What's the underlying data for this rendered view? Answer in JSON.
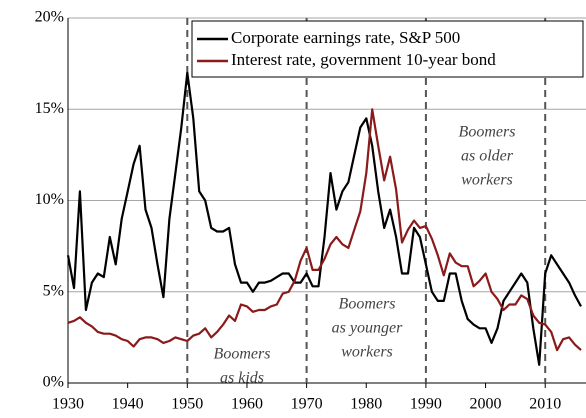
{
  "chart_data": {
    "type": "line",
    "x": [
      1930,
      1931,
      1932,
      1933,
      1934,
      1935,
      1936,
      1937,
      1938,
      1939,
      1940,
      1941,
      1942,
      1943,
      1944,
      1945,
      1946,
      1947,
      1948,
      1949,
      1950,
      1951,
      1952,
      1953,
      1954,
      1955,
      1956,
      1957,
      1958,
      1959,
      1960,
      1961,
      1962,
      1963,
      1964,
      1965,
      1966,
      1967,
      1968,
      1969,
      1970,
      1971,
      1972,
      1973,
      1974,
      1975,
      1976,
      1977,
      1978,
      1979,
      1980,
      1981,
      1982,
      1983,
      1984,
      1985,
      1986,
      1987,
      1988,
      1989,
      1990,
      1991,
      1992,
      1993,
      1994,
      1995,
      1996,
      1997,
      1998,
      1999,
      2000,
      2001,
      2002,
      2003,
      2004,
      2005,
      2006,
      2007,
      2008,
      2009,
      2010,
      2011,
      2012,
      2013,
      2014,
      2015,
      2016
    ],
    "series": [
      {
        "name": "Corporate earnings rate, S&P 500",
        "color": "#000000",
        "values": [
          7.0,
          5.2,
          10.5,
          4.0,
          5.5,
          6.0,
          5.8,
          8.0,
          6.5,
          9.0,
          10.5,
          12.0,
          13.0,
          9.5,
          8.5,
          6.5,
          4.7,
          9.0,
          11.5,
          14.0,
          17.0,
          14.5,
          10.5,
          10.0,
          8.5,
          8.3,
          8.3,
          8.5,
          6.5,
          5.5,
          5.5,
          5.0,
          5.5,
          5.5,
          5.6,
          5.8,
          6.0,
          6.0,
          5.5,
          5.5,
          6.0,
          5.3,
          5.3,
          8.0,
          11.5,
          9.5,
          10.5,
          11.0,
          12.5,
          14.0,
          14.5,
          13.0,
          10.5,
          8.5,
          9.5,
          8.0,
          6.0,
          6.0,
          8.5,
          8.0,
          6.5,
          5.0,
          4.5,
          4.5,
          6.0,
          6.0,
          4.5,
          3.5,
          3.2,
          3.0,
          3.0,
          2.2,
          3.0,
          4.5,
          5.0,
          5.5,
          6.0,
          5.5,
          3.0,
          1.0,
          6.0,
          7.0,
          6.5,
          6.0,
          5.5,
          4.8,
          4.2
        ]
      },
      {
        "name": "Interest rate, government 10-year bond",
        "color": "#8b1a1a",
        "values": [
          3.3,
          3.4,
          3.6,
          3.3,
          3.1,
          2.8,
          2.7,
          2.7,
          2.6,
          2.4,
          2.3,
          2.0,
          2.4,
          2.5,
          2.5,
          2.4,
          2.2,
          2.3,
          2.5,
          2.4,
          2.3,
          2.6,
          2.7,
          3.0,
          2.5,
          2.8,
          3.2,
          3.7,
          3.4,
          4.3,
          4.2,
          3.9,
          4.0,
          4.0,
          4.2,
          4.3,
          4.9,
          5.0,
          5.6,
          6.7,
          7.4,
          6.2,
          6.2,
          6.8,
          7.6,
          8.0,
          7.6,
          7.4,
          8.4,
          9.4,
          11.5,
          15.0,
          13.0,
          11.1,
          12.4,
          10.6,
          7.7,
          8.4,
          8.9,
          8.5,
          8.6,
          7.9,
          7.0,
          5.9,
          7.1,
          6.6,
          6.4,
          6.4,
          5.3,
          5.6,
          6.0,
          5.0,
          4.6,
          4.0,
          4.3,
          4.3,
          4.8,
          4.6,
          3.7,
          3.3,
          3.2,
          2.8,
          1.8,
          2.4,
          2.5,
          2.1,
          1.8
        ]
      }
    ],
    "xlim": [
      1930,
      2016
    ],
    "ylim": [
      0,
      20
    ],
    "xticks": [
      1930,
      1940,
      1950,
      1960,
      1970,
      1980,
      1990,
      2000,
      2010
    ],
    "yticks": [
      {
        "value": 0,
        "label": "0%"
      },
      {
        "value": 5,
        "label": "5%"
      },
      {
        "value": 10,
        "label": "10%"
      },
      {
        "value": 15,
        "label": "15%"
      },
      {
        "value": 20,
        "label": "20%"
      }
    ],
    "grid": true,
    "vlines": [
      1950,
      1970,
      1990,
      2010
    ],
    "annotations": [
      {
        "lines": [
          "Boomers",
          "as kids"
        ]
      },
      {
        "lines": [
          "Boomers",
          "as younger",
          "workers"
        ]
      },
      {
        "lines": [
          "Boomers",
          "as older",
          "workers"
        ]
      }
    ],
    "legend": "upper right"
  }
}
